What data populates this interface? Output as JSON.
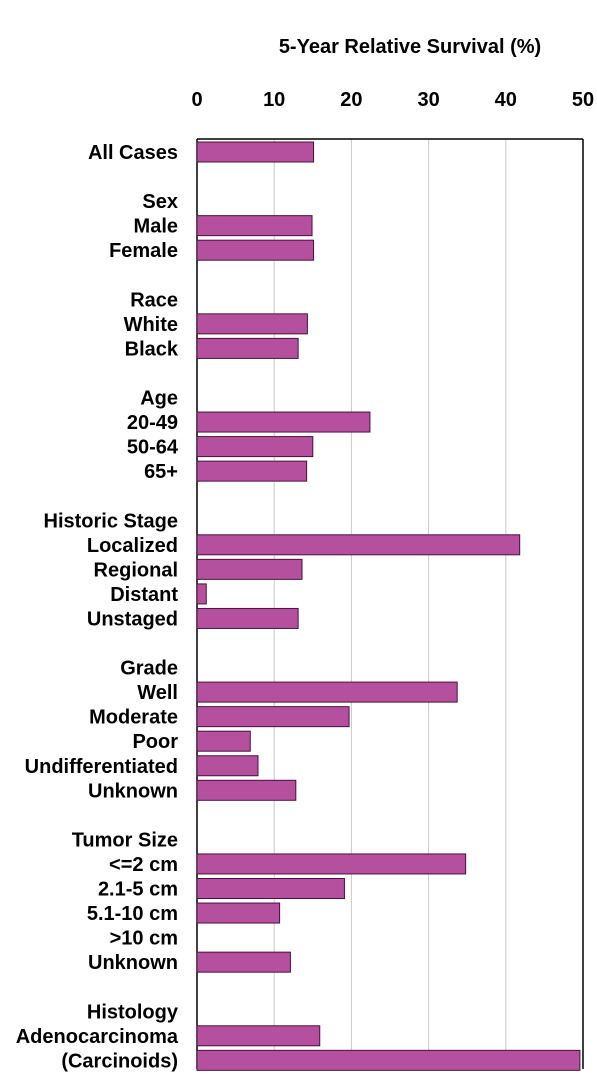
{
  "chart_data": {
    "type": "bar",
    "orientation": "horizontal",
    "title": "5-Year Relative Survival (%)",
    "xlabel": "",
    "ylabel": "",
    "xlim": [
      0,
      50
    ],
    "xticks": [
      0,
      10,
      20,
      30,
      40,
      50
    ],
    "grid": true,
    "legend": "none",
    "bar_color": "#B5509E",
    "bar_edge_color": "#4a1040",
    "rows": [
      {
        "label": "All Cases",
        "value": 15.1
      },
      {
        "label": "",
        "value": null
      },
      {
        "label": "Sex",
        "value": null
      },
      {
        "label": "Male",
        "value": 14.9
      },
      {
        "label": "Female",
        "value": 15.1
      },
      {
        "label": "",
        "value": null
      },
      {
        "label": "Race",
        "value": null
      },
      {
        "label": "White",
        "value": 14.3
      },
      {
        "label": "Black",
        "value": 13.1
      },
      {
        "label": "",
        "value": null
      },
      {
        "label": "Age",
        "value": null
      },
      {
        "label": "20-49",
        "value": 22.4
      },
      {
        "label": "50-64",
        "value": 15.0
      },
      {
        "label": "65+",
        "value": 14.2
      },
      {
        "label": "",
        "value": null
      },
      {
        "label": "Historic Stage",
        "value": null
      },
      {
        "label": "Localized",
        "value": 41.8
      },
      {
        "label": "Regional",
        "value": 13.6
      },
      {
        "label": "Distant",
        "value": 1.2
      },
      {
        "label": "Unstaged",
        "value": 13.1
      },
      {
        "label": "",
        "value": null
      },
      {
        "label": "Grade",
        "value": null
      },
      {
        "label": "Well",
        "value": 33.7
      },
      {
        "label": "Moderate",
        "value": 19.7
      },
      {
        "label": "Poor",
        "value": 6.9
      },
      {
        "label": "Undifferentiated",
        "value": 7.9
      },
      {
        "label": "Unknown",
        "value": 12.8
      },
      {
        "label": "",
        "value": null
      },
      {
        "label": "Tumor Size",
        "value": null
      },
      {
        "label": "<=2 cm",
        "value": 34.8
      },
      {
        "label": "2.1-5 cm",
        "value": 19.1
      },
      {
        "label": "5.1-10 cm",
        "value": 10.7
      },
      {
        "label": ">10 cm",
        "value": null
      },
      {
        "label": "Unknown",
        "value": 12.1
      },
      {
        "label": "",
        "value": null
      },
      {
        "label": "Histology",
        "value": null
      },
      {
        "label": "Adenocarcinoma",
        "value": 15.9
      },
      {
        "label": "(Carcinoids)",
        "value": 49.6
      }
    ]
  }
}
